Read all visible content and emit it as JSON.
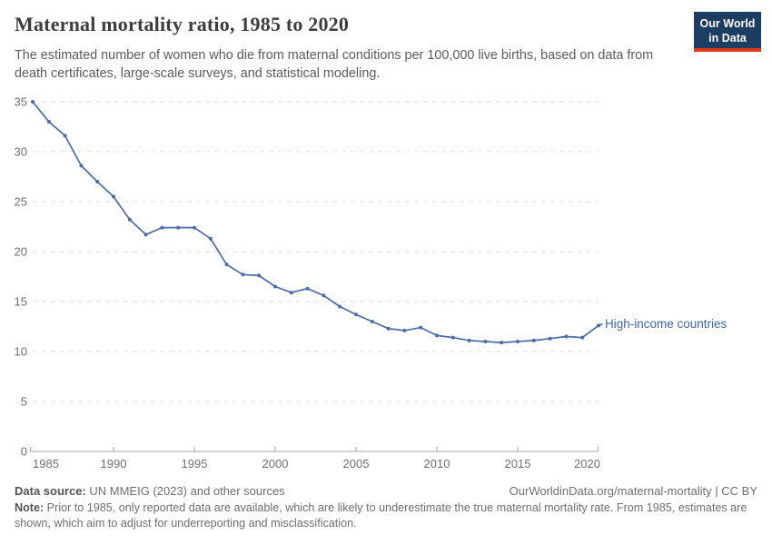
{
  "header": {
    "subtitle": "The estimated number of women who die from maternal conditions per 100,000 live births, based on data from death certificates, large-scale surveys, and statistical modeling.",
    "logo": {
      "line1": "Our World",
      "line2": "in Data"
    }
  },
  "chart_data": {
    "type": "line",
    "title": "Maternal mortality ratio, 1985 to 2020",
    "x": [
      1985,
      1986,
      1987,
      1988,
      1989,
      1990,
      1991,
      1992,
      1993,
      1994,
      1995,
      1996,
      1997,
      1998,
      1999,
      2000,
      2001,
      2002,
      2003,
      2004,
      2005,
      2006,
      2007,
      2008,
      2009,
      2010,
      2011,
      2012,
      2013,
      2014,
      2015,
      2016,
      2017,
      2018,
      2019,
      2020
    ],
    "series": [
      {
        "name": "High-income countries",
        "color": "#4a6ca8",
        "values": [
          35,
          33,
          31.6,
          28.6,
          27,
          25.5,
          23.2,
          21.7,
          22.4,
          22.4,
          22.4,
          21.3,
          18.7,
          17.7,
          17.6,
          16.5,
          15.9,
          16.3,
          15.6,
          14.5,
          13.7,
          13,
          12.3,
          12.1,
          12.4,
          11.6,
          11.4,
          11.1,
          11,
          10.9,
          11,
          11.1,
          11.3,
          11.5,
          11.4,
          12.6
        ]
      }
    ],
    "xlabel": "",
    "ylabel": "",
    "xlim": [
      1985,
      2020
    ],
    "ylim": [
      0,
      35
    ],
    "x_ticks": [
      1985,
      1990,
      1995,
      2000,
      2005,
      2010,
      2015,
      2020
    ],
    "y_ticks": [
      0,
      5,
      10,
      15,
      20,
      25,
      30,
      35
    ],
    "grid": "horizontal-dashed",
    "legend_position": "end-of-line-label"
  },
  "style": {
    "grid_color": "#dcdcdc",
    "axis_color": "#a3a3a3",
    "tick_label_color": "#6f6f6f",
    "line_color": "#4a6ca8",
    "entity_label_color": "#3f67a9"
  },
  "footer": {
    "datasource_label": "Data source:",
    "datasource_text": " UN MMEIG (2023) and other sources",
    "link": "OurWorldinData.org/maternal-mortality | CC BY",
    "note_label": "Note:",
    "note_text": " Prior to 1985, only reported data are available, which are likely to underestimate the true maternal mortality rate. From 1985, estimates are shown, which aim to adjust for underreporting and misclassification."
  }
}
